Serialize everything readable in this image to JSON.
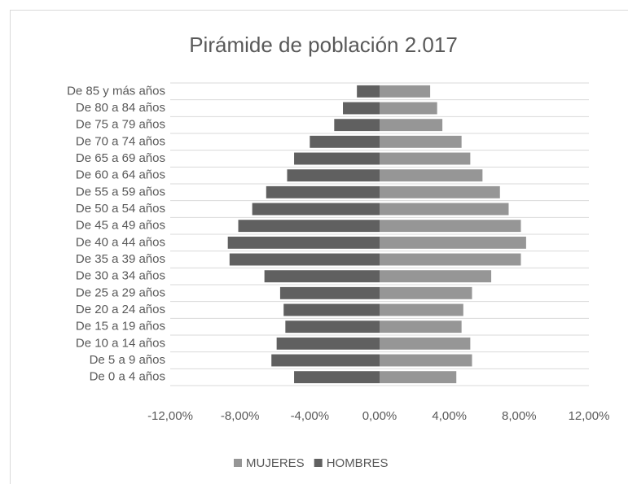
{
  "chart_data": {
    "type": "pyramid",
    "title": "Pirámide de población 2.017",
    "categories": [
      "De 85 y más años",
      "De 80 a 84 años",
      "De 75 a 79 años",
      "De 70 a 74 años",
      "De 65 a 69 años",
      "De 60 a 64 años",
      "De 55 a 59 años",
      "De 50 a 54 años",
      "De 45 a 49 años",
      "De 40 a 44 años",
      "De 35 a 39 años",
      "De 30 a 34 años",
      "De 25 a 29 años",
      "De 20 a 24 años",
      "De 15 a 19 años",
      "De 10 a 14 años",
      "De 5 a 9 años",
      "De 0 a 4 años"
    ],
    "series": [
      {
        "name": "MUJERES",
        "color": "#969696",
        "values": [
          2.9,
          3.3,
          3.6,
          4.7,
          5.2,
          5.9,
          6.9,
          7.4,
          8.1,
          8.4,
          8.1,
          6.4,
          5.3,
          4.8,
          4.7,
          5.2,
          5.3,
          4.4
        ]
      },
      {
        "name": "HOMBRES",
        "color": "#606060",
        "values": [
          -1.3,
          -2.1,
          -2.6,
          -4.0,
          -4.9,
          -5.3,
          -6.5,
          -7.3,
          -8.1,
          -8.7,
          -8.6,
          -6.6,
          -5.7,
          -5.5,
          -5.4,
          -5.9,
          -6.2,
          -4.9
        ]
      }
    ],
    "xlim": [
      -12,
      12
    ],
    "xticks": [
      {
        "value": -12,
        "label": "-12,00%"
      },
      {
        "value": -8,
        "label": "-8,00%"
      },
      {
        "value": -4,
        "label": "-4,00%"
      },
      {
        "value": 0,
        "label": "0,00%"
      },
      {
        "value": 4,
        "label": "4,00%"
      },
      {
        "value": 8,
        "label": "8,00%"
      },
      {
        "value": 12,
        "label": "12,00%"
      }
    ],
    "legend": "bottom"
  }
}
